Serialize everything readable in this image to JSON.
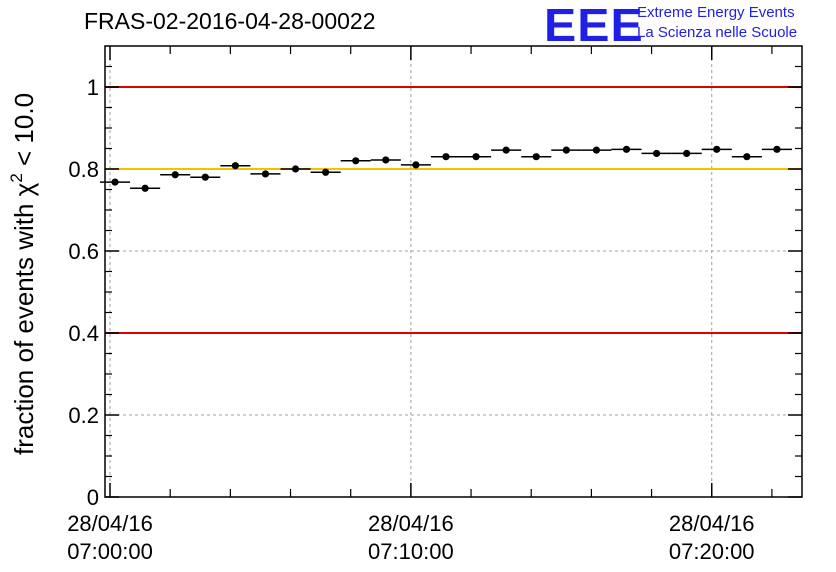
{
  "header": {
    "run_title": "FRAS-02-2016-04-28-00022"
  },
  "logo": {
    "mark": "EEE",
    "line1": "Extreme Energy Events",
    "line2": "La Scienza nelle Scuole"
  },
  "colors": {
    "logo_blue": "#1f1fe6",
    "limit_red": "#e00000",
    "reference_gold": "#f2c200",
    "points": "#000000",
    "grid": "#a0a0a0"
  },
  "chart_data": {
    "type": "scatter",
    "ylabel_text": "fraction of events with χ",
    "ylabel_sup": "2",
    "ylabel_tail": " < 10.0",
    "ylim": [
      0,
      1.1
    ],
    "yticks": [
      0,
      0.2,
      0.4,
      0.6,
      0.8,
      1
    ],
    "ytick_labels": [
      "0",
      "0.2",
      "0.4",
      "0.6",
      "0.8",
      "1"
    ],
    "xlim": [
      "28/04/16 06:59:50",
      "28/04/16 07:23:00"
    ],
    "xticks": [
      {
        "date": "28/04/16",
        "time": "07:00:00"
      },
      {
        "date": "28/04/16",
        "time": "07:10:00"
      },
      {
        "date": "28/04/16",
        "time": "07:20:00"
      }
    ],
    "grid": true,
    "reference_lines": [
      {
        "y": 1.0,
        "color": "red"
      },
      {
        "y": 0.8,
        "color": "gold"
      },
      {
        "y": 0.4,
        "color": "red"
      }
    ],
    "series": [
      {
        "x": [
          "07:00:10",
          "07:01:10",
          "07:02:10",
          "07:03:10",
          "07:04:10",
          "07:05:10",
          "07:06:10",
          "07:07:10",
          "07:08:10",
          "07:09:10",
          "07:10:10",
          "07:11:10",
          "07:12:10",
          "07:13:10",
          "07:14:10",
          "07:15:10",
          "07:16:10",
          "07:17:10",
          "07:18:10",
          "07:19:10",
          "07:20:10",
          "07:21:10",
          "07:22:10"
        ],
        "y": [
          0.768,
          0.753,
          0.786,
          0.78,
          0.808,
          0.788,
          0.8,
          0.792,
          0.82,
          0.822,
          0.81,
          0.83,
          0.83,
          0.846,
          0.83,
          0.846,
          0.846,
          0.848,
          0.838,
          0.838,
          0.848,
          0.83,
          0.848
        ]
      }
    ]
  }
}
